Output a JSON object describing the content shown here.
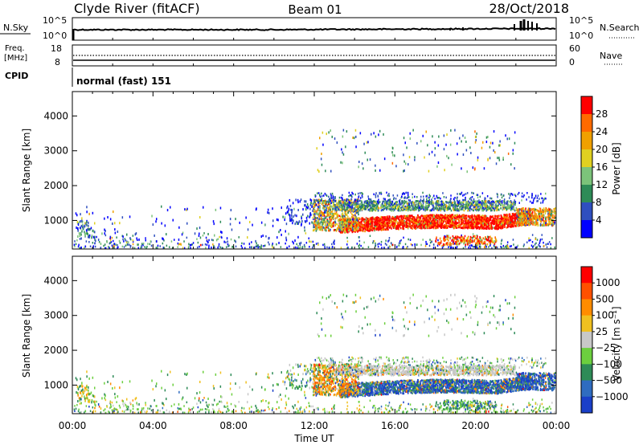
{
  "header": {
    "station": "Clyde River (fitACF)",
    "beam": "Beam 01",
    "date": "28/Oct/2018"
  },
  "top_panels": {
    "nsky_label": "N.Sky",
    "nsky_tick_hi": "10^5",
    "nsky_tick_lo": "10^0",
    "nsearch_label": "N.Search",
    "nsearch_tick_hi": "10^5",
    "nsearch_tick_lo": "10^0",
    "freq_label": "Freq.",
    "freq_unit": "[MHz]",
    "freq_tick_hi": "18",
    "freq_tick_lo": "8",
    "nave_label": "Nave",
    "nave_tick_hi": "60",
    "nave_tick_lo": "0",
    "cpid_label": "CPID",
    "cpid_value": "normal (fast) 151"
  },
  "chart_data": [
    {
      "type": "heatmap",
      "name": "power",
      "ylabel": "Slant Range [km]",
      "yticks": [
        1000,
        2000,
        3000,
        4000
      ],
      "ylim": [
        180,
        4700
      ],
      "xlim_hours": [
        0,
        24
      ],
      "colorbar_label": "Power [dB]",
      "colorbar_ticks": [
        "28",
        "24",
        "20",
        "16",
        "12",
        "8",
        "4"
      ],
      "colors": [
        "#0000ff",
        "#2f4fbf",
        "#2e8b57",
        "#7cc37a",
        "#e0d020",
        "#f0a000",
        "#ff6a00",
        "#ff0000"
      ]
    },
    {
      "type": "heatmap",
      "name": "velocity",
      "ylabel": "Slant Range [km]",
      "yticks": [
        1000,
        2000,
        3000,
        4000
      ],
      "ylim": [
        180,
        4700
      ],
      "xlim_hours": [
        0,
        24
      ],
      "colorbar_label": "Velocity [m s⁻¹]",
      "colorbar_ticks": [
        "1000",
        "500",
        "100",
        "25",
        "−25",
        "−100",
        "−500",
        "−1000"
      ],
      "colors": [
        "#1a3fc8",
        "#2f6cc0",
        "#2e8b57",
        "#6ccf3e",
        "#c8c8c8",
        "#f0c020",
        "#ff8c00",
        "#ff5000",
        "#ff0000"
      ]
    }
  ],
  "xaxis": {
    "ticks": [
      "00:00",
      "04:00",
      "08:00",
      "12:00",
      "16:00",
      "20:00",
      "00:00"
    ],
    "label": "Time UT"
  }
}
